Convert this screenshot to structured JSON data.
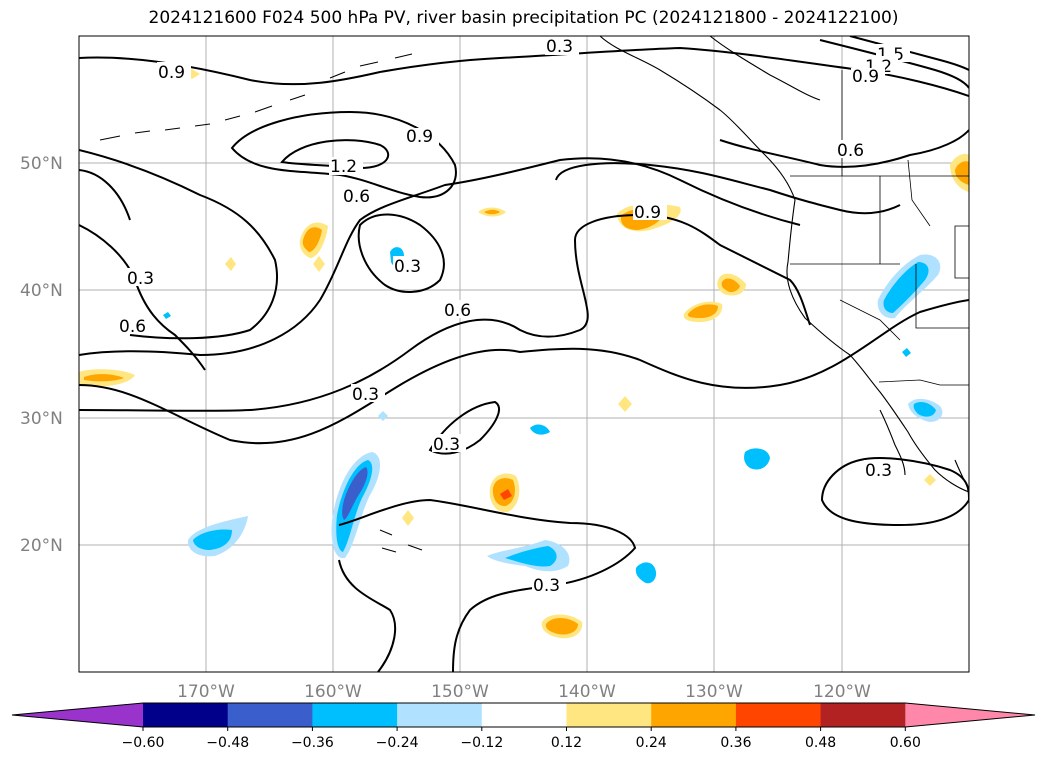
{
  "title": "2024121600 F024 500 hPa PV, river basin precipitation PC (2024121800 - 2024122100)",
  "axes": {
    "x_ticks": [
      "170°W",
      "160°W",
      "150°W",
      "140°W",
      "130°W",
      "120°W"
    ],
    "y_ticks": [
      "50°N",
      "40°N",
      "30°N",
      "20°N"
    ]
  },
  "contour_labels": [
    "0.3",
    "1.5",
    "1.2",
    "0.9",
    "0.9",
    "0.9",
    "1.2",
    "0.6",
    "0.6",
    "0.9",
    "0.3",
    "0.3",
    "0.6",
    "0.6",
    "0.3",
    "0.3",
    "0.3",
    "0.3"
  ],
  "colorbar": {
    "ticks": [
      "−0.60",
      "−0.48",
      "−0.36",
      "−0.24",
      "−0.12",
      "0.12",
      "0.24",
      "0.36",
      "0.48",
      "0.60"
    ],
    "colors": [
      "#9933cc",
      "#00008b",
      "#3a5fcd",
      "#00bfff",
      "#b0e2ff",
      "#ffffff",
      "#ffe680",
      "#ffa500",
      "#ff4500",
      "#b22222",
      "#ff88aa"
    ]
  },
  "chart_data": {
    "type": "map",
    "projection": "plate carree",
    "lon_range": [
      -180,
      -110
    ],
    "lat_range": [
      10,
      60
    ],
    "contour_field": "500 hPa PV",
    "contour_levels": [
      0.3,
      0.6,
      0.9,
      1.2,
      1.5
    ],
    "shading_field": "river basin precipitation PC",
    "shading_levels": [
      -0.6,
      -0.48,
      -0.36,
      -0.24,
      -0.12,
      0.12,
      0.24,
      0.36,
      0.48,
      0.6
    ],
    "grid": true
  }
}
